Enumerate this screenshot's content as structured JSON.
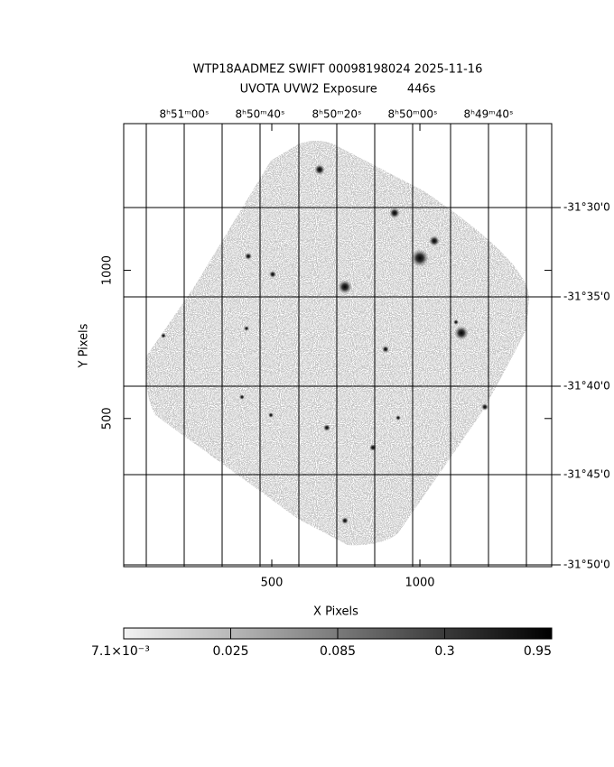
{
  "chart_data": {
    "type": "image",
    "title": "WTP18AADMEZ SWIFT 00098198024 2025-11-16",
    "subtitle": "UVOTA UVW2 Exposure        446s",
    "x_label": "X Pixels",
    "y_label": "Y Pixels",
    "xlim": [
      0,
      1445
    ],
    "ylim": [
      0,
      1495
    ],
    "xticks": [
      500,
      1000
    ],
    "yticks": [
      500,
      1000
    ],
    "ra_labels": [
      "8ʰ51ᵐ00ˢ",
      "8ʰ50ᵐ40ˢ",
      "8ʰ50ᵐ20ˢ",
      "8ʰ50ᵐ00ˢ",
      "8ʰ49ᵐ40ˢ"
    ],
    "dec_labels": [
      "-31°30'0",
      "-31°35'0",
      "-31°40'0",
      "-31°45'0",
      "-31°50'0"
    ],
    "colorbar_labels": [
      "7.1×10⁻³",
      "0.025",
      "0.085",
      "0.3",
      "0.95"
    ]
  }
}
